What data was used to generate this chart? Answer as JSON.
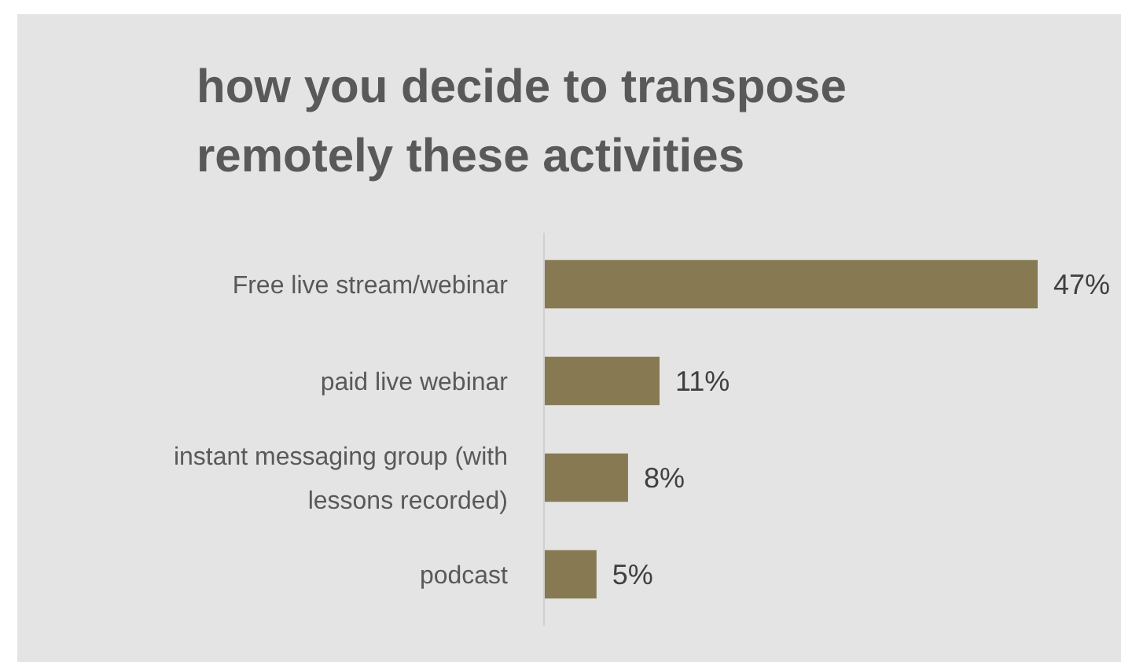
{
  "chart_data": {
    "type": "bar",
    "orientation": "horizontal",
    "title": "how you decide to transpose remotely these activities",
    "categories": [
      "Free live stream/webinar",
      "paid live webinar",
      "instant messaging group (with lessons recorded)",
      "podcast"
    ],
    "values": [
      47,
      11,
      8,
      5
    ],
    "color": "#877a52",
    "value_labels": [
      "47%",
      "11%",
      "8%",
      "5%"
    ]
  }
}
